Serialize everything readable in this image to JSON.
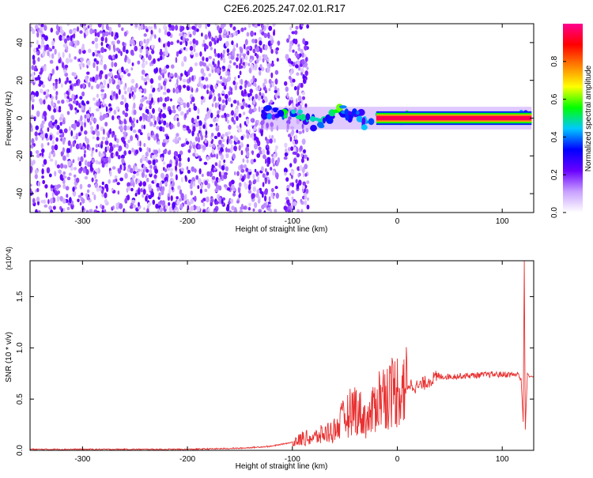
{
  "title": "C2E6.2025.247.02.01.R17",
  "chart_data": [
    {
      "type": "heatmap",
      "xlabel": "Height of straight line (km)",
      "ylabel": "Frequency (Hz)",
      "xlim": [
        -350,
        130
      ],
      "ylim": [
        -50,
        50
      ],
      "xticks": [
        -300,
        -200,
        -100,
        0,
        100
      ],
      "yticks": [
        -40,
        -20,
        0,
        20,
        40
      ],
      "colorbar": {
        "label": "Normalized spectral amplitude",
        "range": [
          0,
          1
        ],
        "ticks": [
          0.0,
          0.2,
          0.4,
          0.6,
          0.8
        ],
        "colors": [
          "#ffffff",
          "#c8a0ff",
          "#6a00ff",
          "#0000ff",
          "#00c8ff",
          "#00ff00",
          "#ffff00",
          "#ff8000",
          "#ff0000",
          "#ff0090"
        ]
      },
      "noise_region": {
        "x_range": [
          -350,
          -85
        ],
        "gap_x_range": [
          -113,
          -107
        ],
        "y_range": [
          -50,
          50
        ],
        "amplitude_range": [
          0.05,
          0.25
        ]
      },
      "signal_line": {
        "y": 0,
        "x_range": [
          -20,
          128
        ],
        "amplitude": 0.95
      },
      "signal_blobs": [
        {
          "x": -125,
          "y": 1,
          "amp": 0.35
        },
        {
          "x": -120,
          "y": 3,
          "amp": 0.4
        },
        {
          "x": -110,
          "y": 3,
          "amp": 0.55
        },
        {
          "x": -95,
          "y": 2,
          "amp": 0.45
        },
        {
          "x": -85,
          "y": -1,
          "amp": 0.5
        },
        {
          "x": -75,
          "y": -3,
          "amp": 0.55
        },
        {
          "x": -65,
          "y": 1,
          "amp": 0.5
        },
        {
          "x": -55,
          "y": 4,
          "amp": 0.55
        },
        {
          "x": -45,
          "y": 2,
          "amp": 0.45
        },
        {
          "x": -35,
          "y": 1,
          "amp": 0.5
        },
        {
          "x": -28,
          "y": -3,
          "amp": 0.45
        },
        {
          "x": -15,
          "y": 0,
          "amp": 0.65
        },
        {
          "x": 5,
          "y": 0,
          "amp": 0.75
        },
        {
          "x": 120,
          "y": 1,
          "amp": 0.5
        }
      ]
    },
    {
      "type": "line",
      "xlabel": "Height of straight line (km)",
      "ylabel": "SNR (10 * v/v)",
      "yscale_label": "(x10^4)",
      "xlim": [
        -350,
        130
      ],
      "ylim": [
        0,
        1.85
      ],
      "xticks": [
        -300,
        -200,
        -100,
        0,
        100
      ],
      "yticks": [
        0.0,
        0.5,
        1.0,
        1.5
      ],
      "color": "#e83030",
      "series": [
        {
          "x": [
            -350,
            -300,
            -200,
            -150,
            -120,
            -105,
            -95,
            -90,
            -80,
            -70,
            -60,
            -50,
            -40,
            -30,
            -25,
            -20,
            -10,
            0,
            10,
            20,
            30,
            40,
            50,
            70,
            90,
            110,
            115,
            118,
            120,
            121,
            122,
            124,
            126,
            130
          ],
          "y": [
            0.01,
            0.01,
            0.01,
            0.02,
            0.04,
            0.07,
            0.09,
            0.12,
            0.12,
            0.16,
            0.2,
            0.32,
            0.42,
            0.3,
            0.32,
            0.5,
            0.55,
            0.6,
            0.65,
            0.62,
            0.68,
            0.72,
            0.72,
            0.73,
            0.74,
            0.74,
            0.74,
            0.7,
            0.28,
            1.85,
            0.2,
            0.75,
            0.72,
            0.72
          ]
        }
      ]
    }
  ]
}
